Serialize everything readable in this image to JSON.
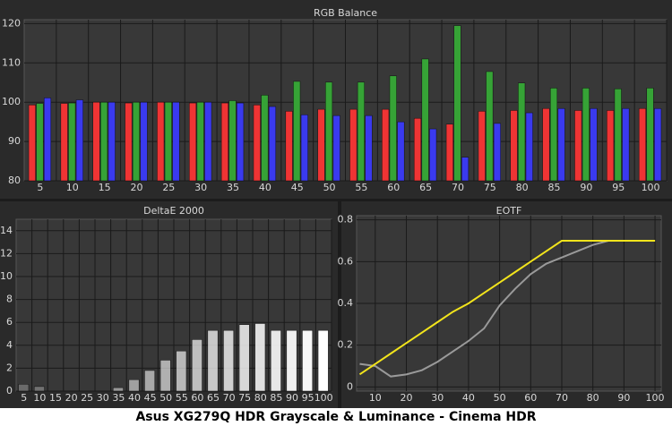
{
  "chart_data": [
    {
      "type": "bar",
      "title": "RGB Balance",
      "categories": [
        "5",
        "10",
        "15",
        "20",
        "25",
        "30",
        "35",
        "40",
        "45",
        "50",
        "55",
        "60",
        "65",
        "70",
        "75",
        "80",
        "85",
        "90",
        "95",
        "100"
      ],
      "series": [
        {
          "color": "#ef3434",
          "values": [
            99.3,
            99.7,
            100,
            99.8,
            100,
            99.8,
            99.8,
            99.3,
            97.7,
            98.2,
            98.2,
            98.2,
            95.9,
            94.4,
            97.7,
            97.9,
            98.4,
            97.9,
            97.9,
            98.4
          ]
        },
        {
          "color": "#36a336",
          "values": [
            99.7,
            99.8,
            100,
            100,
            100,
            100,
            100.4,
            101.8,
            105.3,
            105.1,
            105.1,
            106.7,
            111,
            119.5,
            107.8,
            104.9,
            103.6,
            103.6,
            103.4,
            103.6
          ]
        },
        {
          "color": "#3a3aef",
          "values": [
            101.1,
            100.6,
            100,
            100,
            100,
            100,
            99.8,
            98.9,
            96.8,
            96.6,
            96.6,
            95,
            93.2,
            86,
            94.6,
            97.3,
            98.4,
            98.4,
            98.4,
            98.4
          ]
        }
      ],
      "ylim": [
        80,
        121
      ],
      "yticks": [
        80,
        90,
        100,
        110,
        120
      ],
      "grid": true
    },
    {
      "type": "bar",
      "title": "DeltaE 2000",
      "categories": [
        "5",
        "10",
        "15",
        "20",
        "25",
        "30",
        "35",
        "40",
        "45",
        "50",
        "55",
        "60",
        "65",
        "70",
        "75",
        "80",
        "85",
        "90",
        "95",
        "100"
      ],
      "series": [
        {
          "color": "#ffffff",
          "values": [
            0.6,
            0.4,
            0,
            0,
            0,
            0,
            0.3,
            1.0,
            1.8,
            2.7,
            3.5,
            4.5,
            5.3,
            5.3,
            5.8,
            5.9,
            5.3,
            5.3,
            5.3,
            5.3
          ]
        }
      ],
      "ylim": [
        0,
        15
      ],
      "yticks": [
        0,
        2,
        4,
        6,
        8,
        10,
        12,
        14
      ],
      "grid": true
    },
    {
      "type": "line",
      "title": "EOTF",
      "x": [
        5,
        10,
        15,
        20,
        25,
        30,
        35,
        40,
        45,
        50,
        55,
        60,
        65,
        70,
        75,
        80,
        85,
        90,
        95,
        100
      ],
      "series": [
        {
          "color": "#f2e41c",
          "values": [
            0.06,
            0.11,
            0.16,
            0.21,
            0.26,
            0.31,
            0.36,
            0.4,
            0.45,
            0.5,
            0.55,
            0.6,
            0.65,
            0.7,
            0.7,
            0.7,
            0.7,
            0.7,
            0.7,
            0.7
          ]
        },
        {
          "color": "#9a9a9a",
          "values": [
            0.11,
            0.1,
            0.05,
            0.06,
            0.08,
            0.12,
            0.17,
            0.22,
            0.28,
            0.39,
            0.47,
            0.54,
            0.59,
            0.62,
            0.65,
            0.68,
            0.7,
            0.7,
            0.7,
            0.7
          ]
        }
      ],
      "xlim": [
        4,
        102
      ],
      "xticks": [
        10,
        20,
        30,
        40,
        50,
        60,
        70,
        80,
        90,
        100
      ],
      "ylim": [
        -0.02,
        0.82
      ],
      "yticks": [
        0,
        0.2,
        0.4,
        0.6,
        0.8
      ],
      "grid": true
    }
  ],
  "caption": "Asus XG279Q HDR Grayscale & Luminance - Cinema HDR"
}
